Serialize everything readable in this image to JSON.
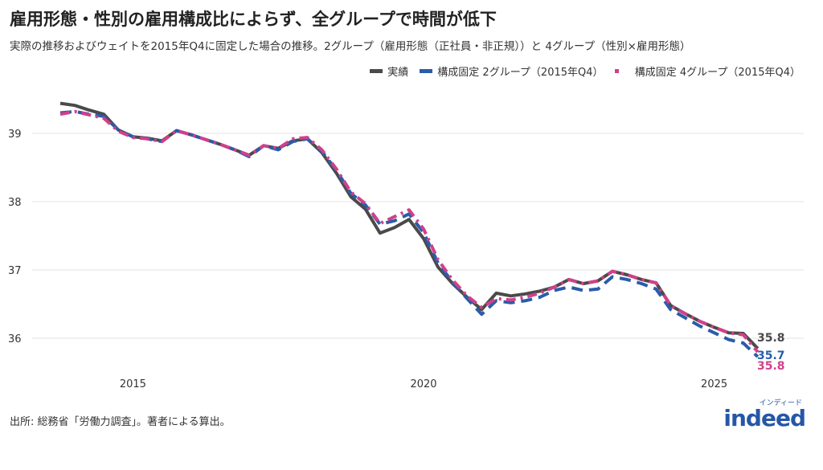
{
  "title": "雇用形態・性別の雇用構成比によらず、全グループで時間が低下",
  "subtitle": "実際の推移およびウェイトを2015年Q4に固定した場合の推移。2グループ（雇用形態（正社員・非正規））と 4グループ（性別×雇用形態）",
  "footer": "出所: 総務省「労働力調査」。著者による算出。",
  "logo": {
    "word": "indeed",
    "kana": "インディード"
  },
  "colors": {
    "actual": "#4a4a4a",
    "fixed2": "#2a5caa",
    "fixed4": "#d0408a",
    "grid": "#e3e3e3"
  },
  "chart_data": {
    "type": "line",
    "x_start": "2013Q4",
    "x_ticks": [
      {
        "label": "2015",
        "index": 5
      },
      {
        "label": "2020",
        "index": 25
      },
      {
        "label": "2025",
        "index": 45
      }
    ],
    "y_ticks": [
      36,
      37,
      38,
      39
    ],
    "ylim": [
      35.55,
      39.6
    ],
    "grid": "horizontal",
    "legend_position": "top-right",
    "series": [
      {
        "name": "実績",
        "style": "solid",
        "end_label": "35.8",
        "values": [
          39.44,
          39.41,
          39.34,
          39.28,
          39.05,
          38.95,
          38.93,
          38.89,
          39.04,
          38.98,
          38.91,
          38.84,
          38.76,
          38.68,
          38.82,
          38.78,
          38.89,
          38.92,
          38.72,
          38.42,
          38.07,
          37.89,
          37.54,
          37.62,
          37.74,
          37.46,
          37.04,
          36.8,
          36.6,
          36.42,
          36.66,
          36.62,
          36.65,
          36.69,
          36.75,
          36.86,
          36.8,
          36.84,
          36.98,
          36.93,
          36.86,
          36.81,
          36.48,
          36.36,
          36.25,
          36.16,
          36.08,
          36.07,
          35.85
        ]
      },
      {
        "name": "構成固定 2グループ（2015年Q4）",
        "style": "dashed",
        "end_label": "35.7",
        "values": [
          39.3,
          39.32,
          39.28,
          39.25,
          39.05,
          38.95,
          38.92,
          38.88,
          39.04,
          38.98,
          38.91,
          38.84,
          38.76,
          38.66,
          38.82,
          38.76,
          38.88,
          38.92,
          38.74,
          38.46,
          38.12,
          37.95,
          37.67,
          37.72,
          37.82,
          37.55,
          37.1,
          36.82,
          36.58,
          36.35,
          36.55,
          36.52,
          36.55,
          36.6,
          36.7,
          36.75,
          36.7,
          36.72,
          36.9,
          36.86,
          36.8,
          36.72,
          36.42,
          36.3,
          36.18,
          36.08,
          35.98,
          35.93,
          35.73
        ]
      },
      {
        "name": "構成固定 4グループ（2015年Q4）",
        "style": "dotdash",
        "end_label": "35.8",
        "values": [
          39.28,
          39.32,
          39.27,
          39.22,
          39.03,
          38.94,
          38.92,
          38.88,
          39.04,
          38.98,
          38.91,
          38.84,
          38.76,
          38.68,
          38.82,
          38.78,
          38.92,
          38.94,
          38.76,
          38.48,
          38.14,
          37.97,
          37.68,
          37.78,
          37.88,
          37.6,
          37.15,
          36.85,
          36.62,
          36.45,
          36.58,
          36.56,
          36.6,
          36.66,
          36.75,
          36.86,
          36.8,
          36.84,
          36.98,
          36.93,
          36.86,
          36.81,
          36.48,
          36.36,
          36.25,
          36.16,
          36.08,
          36.05,
          35.8
        ]
      }
    ]
  }
}
